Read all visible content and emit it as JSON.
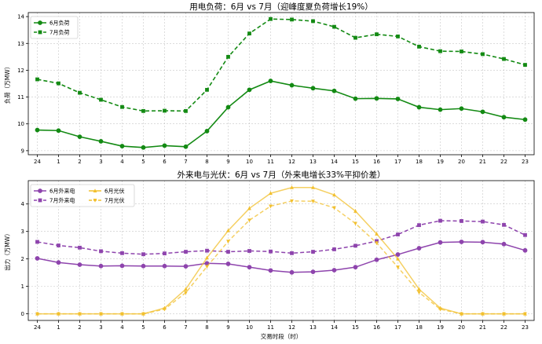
{
  "chart_data": [
    {
      "type": "line",
      "title": "用电负荷：6月 vs 7月（迎峰度夏负荷增长19%）",
      "xlabel": "",
      "ylabel": "负荷（万MW）",
      "categories": [
        "24",
        "1",
        "2",
        "3",
        "4",
        "5",
        "6",
        "7",
        "8",
        "9",
        "10",
        "11",
        "12",
        "13",
        "14",
        "15",
        "16",
        "17",
        "18",
        "19",
        "20",
        "21",
        "22",
        "23"
      ],
      "ylim": [
        8.85,
        14.15
      ],
      "yticks": [
        9,
        10,
        11,
        12,
        13,
        14
      ],
      "grid": true,
      "legend_position": "top-left",
      "series": [
        {
          "name": "6月负荷",
          "color": "#138a13",
          "style": "solid",
          "marker": "circle",
          "values": [
            9.77,
            9.75,
            9.52,
            9.35,
            9.17,
            9.12,
            9.19,
            9.15,
            9.73,
            10.62,
            11.27,
            11.6,
            11.44,
            11.33,
            11.23,
            10.94,
            10.95,
            10.93,
            10.62,
            10.53,
            10.57,
            10.45,
            10.25,
            10.16
          ]
        },
        {
          "name": "7月负荷",
          "color": "#138a13",
          "style": "dashed",
          "marker": "square",
          "values": [
            11.66,
            11.51,
            11.16,
            10.9,
            10.63,
            10.48,
            10.49,
            10.48,
            11.27,
            12.5,
            13.37,
            13.91,
            13.89,
            13.83,
            13.62,
            13.21,
            13.34,
            13.26,
            12.88,
            12.71,
            12.7,
            12.6,
            12.42,
            12.2
          ]
        }
      ]
    },
    {
      "type": "line",
      "title": "外来电与光伏：6月 vs 7月（外来电增长33%平抑价差）",
      "xlabel": "交易时段（时）",
      "ylabel": "出力（万MW）",
      "categories": [
        "24",
        "1",
        "2",
        "3",
        "4",
        "5",
        "6",
        "7",
        "8",
        "9",
        "10",
        "11",
        "12",
        "13",
        "14",
        "15",
        "16",
        "17",
        "18",
        "19",
        "20",
        "21",
        "22",
        "23"
      ],
      "ylim": [
        -0.24,
        4.85
      ],
      "yticks": [
        0,
        1,
        2,
        3,
        4
      ],
      "grid": true,
      "legend_position": "top-left",
      "series": [
        {
          "name": "6月外来电",
          "color": "#8e44ad",
          "style": "solid",
          "marker": "circle",
          "values": [
            2.02,
            1.87,
            1.79,
            1.74,
            1.75,
            1.74,
            1.74,
            1.73,
            1.84,
            1.82,
            1.7,
            1.58,
            1.51,
            1.53,
            1.59,
            1.7,
            1.97,
            2.16,
            2.39,
            2.6,
            2.62,
            2.61,
            2.54,
            2.31
          ]
        },
        {
          "name": "7月外来电",
          "color": "#8e44ad",
          "style": "dashed",
          "marker": "square",
          "values": [
            2.62,
            2.49,
            2.41,
            2.28,
            2.21,
            2.17,
            2.2,
            2.26,
            2.3,
            2.26,
            2.29,
            2.27,
            2.21,
            2.26,
            2.35,
            2.48,
            2.65,
            2.89,
            3.23,
            3.39,
            3.38,
            3.36,
            3.24,
            2.87
          ]
        },
        {
          "name": "6月光伏",
          "color": "#f2c02f",
          "style": "solid",
          "marker": "triangle-up",
          "values": [
            0.0,
            0.0,
            0.0,
            0.0,
            0.0,
            0.0,
            0.21,
            0.9,
            2.04,
            3.03,
            3.84,
            4.39,
            4.6,
            4.6,
            4.33,
            3.74,
            2.91,
            2.0,
            0.9,
            0.21,
            0.0,
            0.0,
            0.0,
            0.0
          ]
        },
        {
          "name": "7月光伏",
          "color": "#f2c02f",
          "style": "dashed",
          "marker": "triangle-down",
          "values": [
            0.0,
            0.0,
            0.0,
            0.0,
            0.0,
            0.0,
            0.17,
            0.77,
            1.72,
            2.64,
            3.41,
            3.92,
            4.11,
            4.1,
            3.86,
            3.29,
            2.58,
            1.7,
            0.78,
            0.17,
            0.0,
            0.0,
            0.0,
            0.0
          ]
        }
      ]
    }
  ]
}
